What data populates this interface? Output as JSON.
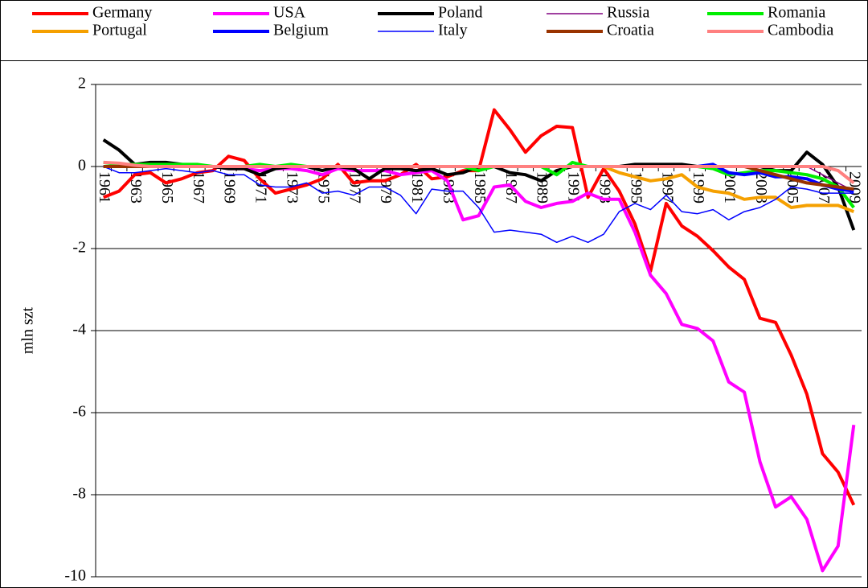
{
  "chart_data": {
    "type": "line",
    "y_label": "mln szt",
    "categories": [
      "1961",
      null,
      "1963",
      null,
      "1965",
      null,
      "1967",
      null,
      "1969",
      null,
      "1971",
      null,
      "1973",
      null,
      "1975",
      null,
      "1977",
      null,
      "1979",
      null,
      "1981",
      null,
      "1983",
      null,
      "1985",
      null,
      "1987",
      null,
      "1989",
      null,
      "1991",
      null,
      "1993",
      null,
      "1995",
      null,
      "1997",
      null,
      "1999",
      null,
      "2001",
      null,
      "2003",
      null,
      "2005",
      null,
      "2007",
      null,
      "2009"
    ],
    "ylim": [
      -10,
      2
    ],
    "yticks": [
      2,
      0,
      -2,
      -4,
      -6,
      -8,
      -10
    ],
    "grid": true,
    "legend": "top",
    "series": [
      {
        "name": "Germany",
        "color": "#ff0000",
        "width": 4,
        "values": [
          -0.75,
          -0.6,
          -0.2,
          -0.15,
          -0.4,
          -0.3,
          -0.15,
          -0.1,
          0.25,
          0.15,
          -0.3,
          -0.65,
          -0.55,
          -0.45,
          -0.3,
          0.05,
          -0.4,
          -0.35,
          -0.35,
          -0.2,
          0.05,
          -0.3,
          -0.25,
          -0.1,
          -0.1,
          1.38,
          0.9,
          0.35,
          0.75,
          0.98,
          0.95,
          -0.75,
          -0.05,
          -0.6,
          -1.4,
          -2.55,
          -0.9,
          -1.45,
          -1.7,
          -2.05,
          -2.45,
          -2.75,
          -3.7,
          -3.8,
          -4.6,
          -5.55,
          -7.0,
          -7.45,
          -8.25
        ]
      },
      {
        "name": "USA",
        "color": "#ff00ff",
        "width": 4,
        "values": [
          0,
          0,
          0,
          0,
          0,
          0,
          0,
          0,
          -0.05,
          -0.05,
          -0.1,
          -0.05,
          -0.05,
          -0.1,
          -0.2,
          -0.05,
          -0.1,
          -0.1,
          -0.1,
          -0.2,
          -0.15,
          -0.1,
          -0.35,
          -1.3,
          -1.2,
          -0.5,
          -0.45,
          -0.85,
          -1.0,
          -0.9,
          -0.85,
          -0.65,
          -0.8,
          -0.8,
          -1.6,
          -2.65,
          -3.1,
          -3.85,
          -3.95,
          -4.25,
          -5.25,
          -5.5,
          -7.2,
          -8.3,
          -8.05,
          -8.6,
          -9.85,
          -9.25,
          -6.3
        ]
      },
      {
        "name": "Poland",
        "color": "#000000",
        "width": 4,
        "values": [
          0.65,
          0.4,
          0.05,
          0.1,
          0.1,
          0.05,
          0,
          0,
          -0.05,
          -0.05,
          -0.2,
          -0.05,
          0,
          0,
          -0.1,
          0,
          -0.05,
          -0.3,
          -0.05,
          -0.05,
          -0.1,
          -0.05,
          -0.2,
          -0.15,
          0,
          0,
          -0.15,
          -0.2,
          -0.35,
          -0.1,
          0,
          0,
          0,
          0,
          0.05,
          0.05,
          0.05,
          0.05,
          0,
          0,
          0,
          0,
          0,
          -0.1,
          -0.1,
          0.35,
          0.05,
          -0.5,
          -1.55
        ]
      },
      {
        "name": "Russia",
        "color": "#800080",
        "width": 1.5,
        "values": [
          0,
          0,
          0,
          0,
          0,
          0,
          0,
          0,
          0,
          0,
          0,
          0,
          0,
          0,
          0,
          0,
          0,
          0,
          0,
          0,
          0,
          0,
          0,
          0,
          0,
          0,
          0,
          0,
          0,
          0,
          0,
          0,
          0,
          0,
          0,
          0,
          0,
          0,
          0,
          0,
          0,
          0,
          0,
          0,
          0,
          0,
          -0.2,
          -0.4,
          -0.6
        ]
      },
      {
        "name": "Romania",
        "color": "#00ee00",
        "width": 4,
        "values": [
          0.1,
          0.05,
          0.05,
          0.05,
          0.05,
          0.05,
          0.05,
          0,
          0,
          0,
          0.05,
          0,
          0.05,
          0,
          0,
          0,
          0,
          0,
          0,
          0,
          0,
          0,
          0,
          0,
          -0.1,
          0,
          0,
          0,
          0,
          -0.2,
          0.1,
          0,
          0,
          0,
          0,
          0,
          0,
          0,
          0,
          -0.05,
          -0.2,
          -0.15,
          -0.1,
          -0.1,
          -0.15,
          -0.2,
          -0.3,
          -0.5,
          -1.0
        ]
      },
      {
        "name": "Portugal",
        "color": "#f5a000",
        "width": 4,
        "values": [
          0,
          0,
          0,
          0,
          0,
          0,
          0,
          0,
          0,
          0,
          0,
          0,
          0,
          0,
          0,
          0,
          0,
          0,
          0,
          0,
          0,
          0,
          0,
          0,
          0,
          0,
          0,
          0,
          0,
          0,
          0,
          0,
          0,
          -0.15,
          -0.25,
          -0.35,
          -0.3,
          -0.2,
          -0.5,
          -0.6,
          -0.65,
          -0.8,
          -0.75,
          -0.75,
          -1.0,
          -0.95,
          -0.95,
          -0.95,
          -1.1
        ]
      },
      {
        "name": "Belgium",
        "color": "#0000ff",
        "width": 4,
        "values": [
          0,
          0,
          0,
          0,
          0,
          0,
          0,
          0,
          0,
          0,
          0,
          0,
          0,
          0,
          0,
          0,
          0,
          0,
          0,
          0,
          0,
          0,
          0,
          0,
          0,
          0,
          0,
          0,
          0,
          0,
          0,
          0,
          0,
          0,
          0,
          0,
          0,
          0,
          0,
          0.05,
          -0.15,
          -0.2,
          -0.15,
          -0.25,
          -0.25,
          -0.3,
          -0.45,
          -0.55,
          -0.6
        ]
      },
      {
        "name": "Italy",
        "color": "#0000ff",
        "width": 1.5,
        "values": [
          0,
          -0.15,
          -0.15,
          -0.1,
          -0.05,
          -0.1,
          -0.15,
          -0.1,
          -0.2,
          -0.2,
          -0.45,
          -0.5,
          -0.5,
          -0.4,
          -0.65,
          -0.6,
          -0.7,
          -0.5,
          -0.5,
          -0.7,
          -1.15,
          -0.55,
          -0.6,
          -0.6,
          -1.0,
          -1.6,
          -1.55,
          -1.6,
          -1.65,
          -1.85,
          -1.7,
          -1.85,
          -1.65,
          -1.1,
          -0.9,
          -1.05,
          -0.7,
          -1.1,
          -1.15,
          -1.05,
          -1.3,
          -1.1,
          -1.0,
          -0.8,
          -0.5,
          -0.55,
          -0.65,
          -0.65,
          -0.65
        ]
      },
      {
        "name": "Croatia",
        "color": "#993300",
        "width": 4,
        "values": [
          0,
          0,
          0,
          0,
          0,
          0,
          0,
          0,
          0,
          0,
          0,
          0,
          0,
          0,
          0,
          0,
          0,
          0,
          0,
          0,
          0,
          0,
          0,
          0,
          0,
          0,
          0,
          0,
          0,
          0,
          0,
          0,
          0,
          0,
          0,
          0,
          0,
          0,
          0,
          0,
          0,
          0,
          -0.1,
          -0.2,
          -0.3,
          -0.4,
          -0.45,
          -0.5,
          -0.55
        ]
      },
      {
        "name": "Cambodia",
        "color": "#ff8080",
        "width": 4,
        "values": [
          0.1,
          0.08,
          0.03,
          0,
          0,
          0,
          0,
          0,
          0,
          0,
          0,
          0,
          0,
          0,
          0,
          0,
          0,
          0,
          0,
          0,
          0,
          0,
          0,
          0,
          0,
          0,
          0,
          0,
          0,
          0,
          0,
          0,
          0,
          0,
          0,
          0,
          0,
          0,
          0,
          0,
          0,
          0,
          0,
          0,
          0,
          0,
          0,
          -0.1,
          -0.4
        ]
      }
    ]
  }
}
